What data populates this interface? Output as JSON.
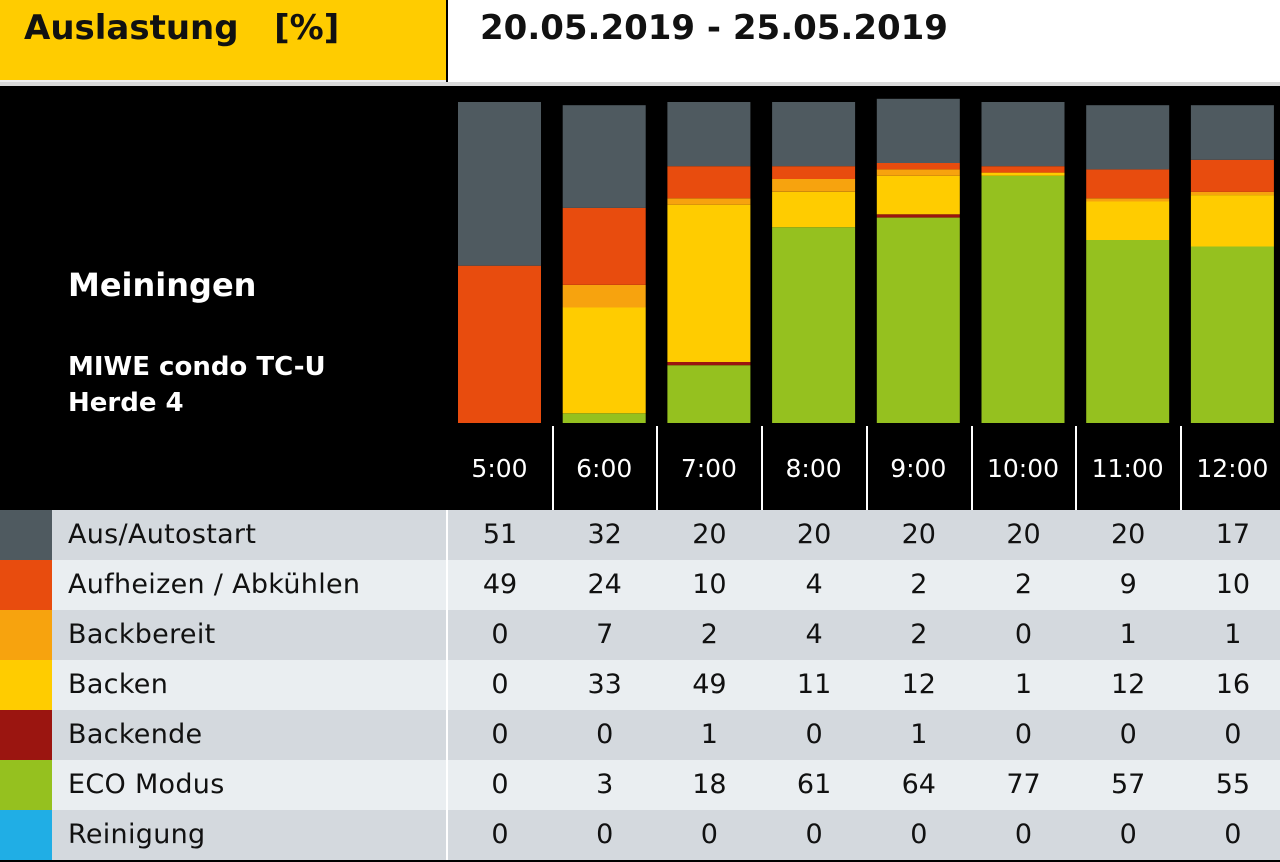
{
  "header": {
    "title": "Auslastung   [%]",
    "date_range": "20.05.2019 - 25.05.2019"
  },
  "location": "Meiningen",
  "device_line1": "MIWE condo TC-U",
  "device_line2": "Herde 4",
  "colors": {
    "title_bg": "#ffcc00",
    "row_bg_dark": "#d4d9de",
    "row_bg_light": "#eaeef1"
  },
  "chart_data": {
    "type": "bar",
    "stacked": true,
    "orientation": "vertical",
    "categories": [
      "5:00",
      "6:00",
      "7:00",
      "8:00",
      "9:00",
      "10:00",
      "11:00",
      "12:00"
    ],
    "stack_order": "bottom-to-top: ECO Modus, Backende, Backen, Backbereit, Aufheizen / Abkühlen, Aus/Autostart (Reinigung 0)",
    "series": [
      {
        "name": "Aus/Autostart",
        "color": "#4f5a60",
        "values": [
          51,
          32,
          20,
          20,
          20,
          20,
          20,
          17
        ]
      },
      {
        "name": "Aufheizen / Abkühlen",
        "color": "#e84c0e",
        "values": [
          49,
          24,
          10,
          4,
          2,
          2,
          9,
          10
        ]
      },
      {
        "name": "Backbereit",
        "color": "#f7a30e",
        "values": [
          0,
          7,
          2,
          4,
          2,
          0,
          1,
          1
        ]
      },
      {
        "name": "Backen",
        "color": "#ffcc00",
        "values": [
          0,
          33,
          49,
          11,
          12,
          1,
          12,
          16
        ]
      },
      {
        "name": "Backende",
        "color": "#9b1510",
        "values": [
          0,
          0,
          1,
          0,
          1,
          0,
          0,
          0
        ]
      },
      {
        "name": "ECO Modus",
        "color": "#95c11f",
        "values": [
          0,
          3,
          18,
          61,
          64,
          77,
          57,
          55
        ]
      },
      {
        "name": "Reinigung",
        "color": "#20aee5",
        "values": [
          0,
          0,
          0,
          0,
          0,
          0,
          0,
          0
        ]
      }
    ],
    "ylim": [
      0,
      100
    ],
    "grid": false,
    "title": "Auslastung   [%]"
  }
}
